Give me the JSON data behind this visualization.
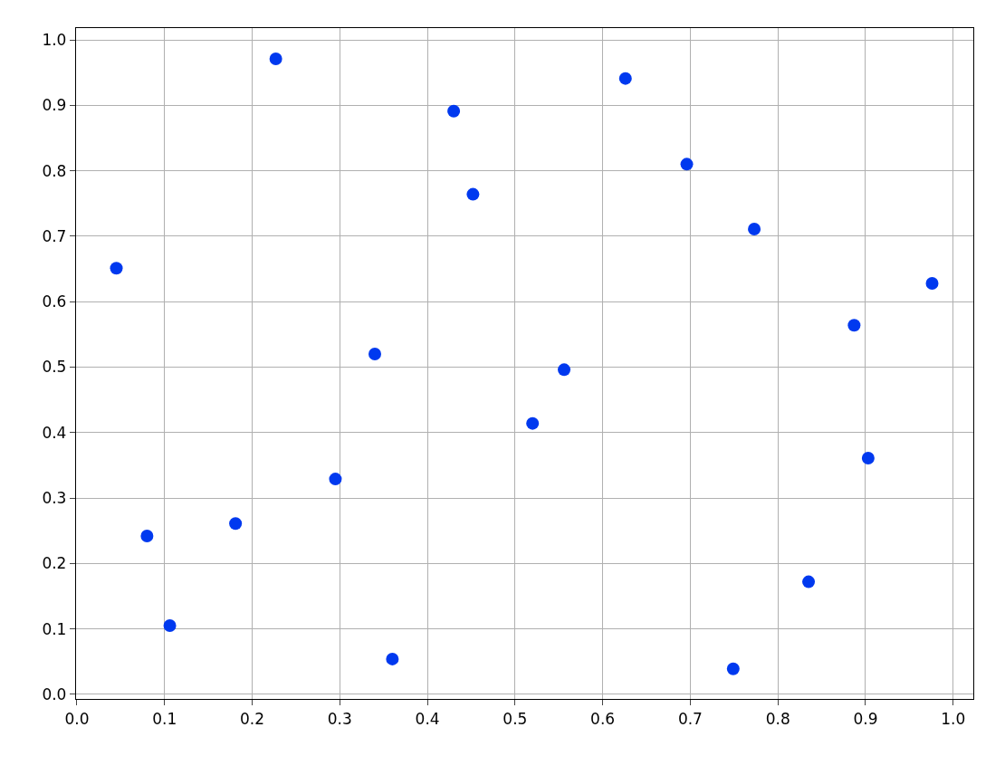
{
  "chart_data": {
    "type": "scatter",
    "marker": "circle",
    "grid": true,
    "x": [
      0.045,
      0.08,
      0.106,
      0.181,
      0.227,
      0.295,
      0.34,
      0.36,
      0.43,
      0.452,
      0.52,
      0.556,
      0.626,
      0.696,
      0.749,
      0.773,
      0.835,
      0.887,
      0.903,
      0.976
    ],
    "series": [
      {
        "color": "#0039ef",
        "values": [
          0.651,
          0.242,
          0.105,
          0.261,
          0.971,
          0.329,
          0.52,
          0.054,
          0.891,
          0.764,
          0.414,
          0.496,
          0.941,
          0.81,
          0.039,
          0.711,
          0.172,
          0.564,
          0.361,
          0.628
        ]
      }
    ],
    "xlim": [
      -0.001,
      1.023
    ],
    "ylim": [
      -0.007,
      1.018
    ],
    "xticks": [
      {
        "value": 0,
        "label": "0.0"
      },
      0.1,
      0.2,
      0.3,
      0.4,
      0.5,
      0.6,
      0.7,
      0.8,
      0.9,
      {
        "value": 1,
        "label": "1.0"
      }
    ],
    "yticks": [
      {
        "value": 0,
        "label": "0.0"
      },
      0.1,
      0.2,
      0.3,
      0.4,
      0.5,
      0.6,
      0.7,
      0.8,
      0.9,
      {
        "value": 1,
        "label": "1.0"
      }
    ]
  }
}
